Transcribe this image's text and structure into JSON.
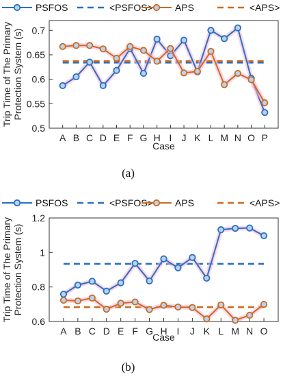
{
  "colors": {
    "psfos": "#2a6fc0",
    "aps": "#cc6a1e",
    "axis": "#333333"
  },
  "chart_data": [
    {
      "type": "line",
      "caption": "(a)",
      "categories": [
        "A",
        "B",
        "C",
        "D",
        "E",
        "F",
        "G",
        "H",
        "I",
        "J",
        "K",
        "L",
        "M",
        "N",
        "O",
        "P"
      ],
      "xlabel": "Case",
      "ylabel": [
        "Trip Time of The Primary",
        "Protection System (s)"
      ],
      "ylim": [
        0.5,
        0.72
      ],
      "yticks": [
        0.5,
        0.55,
        0.6,
        0.65,
        0.7
      ],
      "ytick_labels": [
        "0.5",
        "0.55",
        "0.6",
        "0.65",
        "0.7"
      ],
      "legend": [
        "PSFOS",
        "<PSFOS>",
        "APS",
        "<APS>"
      ],
      "series": [
        {
          "name": "PSFOS",
          "style": "line-marker",
          "color_key": "psfos",
          "values": [
            0.587,
            0.605,
            0.635,
            0.587,
            0.618,
            0.663,
            0.612,
            0.682,
            0.648,
            0.68,
            0.615,
            0.7,
            0.683,
            0.705,
            0.602,
            0.532
          ]
        },
        {
          "name": "APS",
          "style": "line-marker",
          "color_key": "aps",
          "values": [
            0.667,
            0.669,
            0.669,
            0.662,
            0.643,
            0.667,
            0.659,
            0.637,
            0.663,
            0.613,
            0.616,
            0.657,
            0.589,
            0.612,
            0.599,
            0.552
          ]
        },
        {
          "name": "<PSFOS>",
          "style": "dashed",
          "color_key": "psfos",
          "value": 0.634
        },
        {
          "name": "<APS>",
          "style": "dashed",
          "color_key": "aps",
          "value": 0.637
        }
      ]
    },
    {
      "type": "line",
      "caption": "(b)",
      "categories": [
        "A",
        "B",
        "C",
        "D",
        "E",
        "F",
        "G",
        "H",
        "I",
        "J",
        "K",
        "L",
        "M",
        "N",
        "O"
      ],
      "xlabel": "Case",
      "ylabel": [
        "Trip Time of The Primary",
        "Protection System (s)"
      ],
      "ylim": [
        0.6,
        1.2
      ],
      "yticks": [
        0.6,
        0.8,
        1.0,
        1.2
      ],
      "ytick_labels": [
        "0.6",
        "0.8",
        "1",
        "1.2"
      ],
      "legend": [
        "PSFOS",
        "<PSFOS>",
        "APS",
        "<APS>"
      ],
      "series": [
        {
          "name": "PSFOS",
          "style": "line-marker",
          "color_key": "psfos",
          "values": [
            0.758,
            0.811,
            0.833,
            0.776,
            0.824,
            0.937,
            0.835,
            0.963,
            0.911,
            0.971,
            0.851,
            1.132,
            1.14,
            1.142,
            1.097
          ]
        },
        {
          "name": "APS",
          "style": "line-marker",
          "color_key": "aps",
          "values": [
            0.723,
            0.719,
            0.736,
            0.671,
            0.706,
            0.713,
            0.669,
            0.694,
            0.684,
            0.681,
            0.615,
            0.696,
            0.607,
            0.636,
            0.699
          ]
        },
        {
          "name": "<PSFOS>",
          "style": "dashed",
          "color_key": "psfos",
          "value": 0.934
        },
        {
          "name": "<APS>",
          "style": "dashed",
          "color_key": "aps",
          "value": 0.683
        }
      ]
    }
  ]
}
